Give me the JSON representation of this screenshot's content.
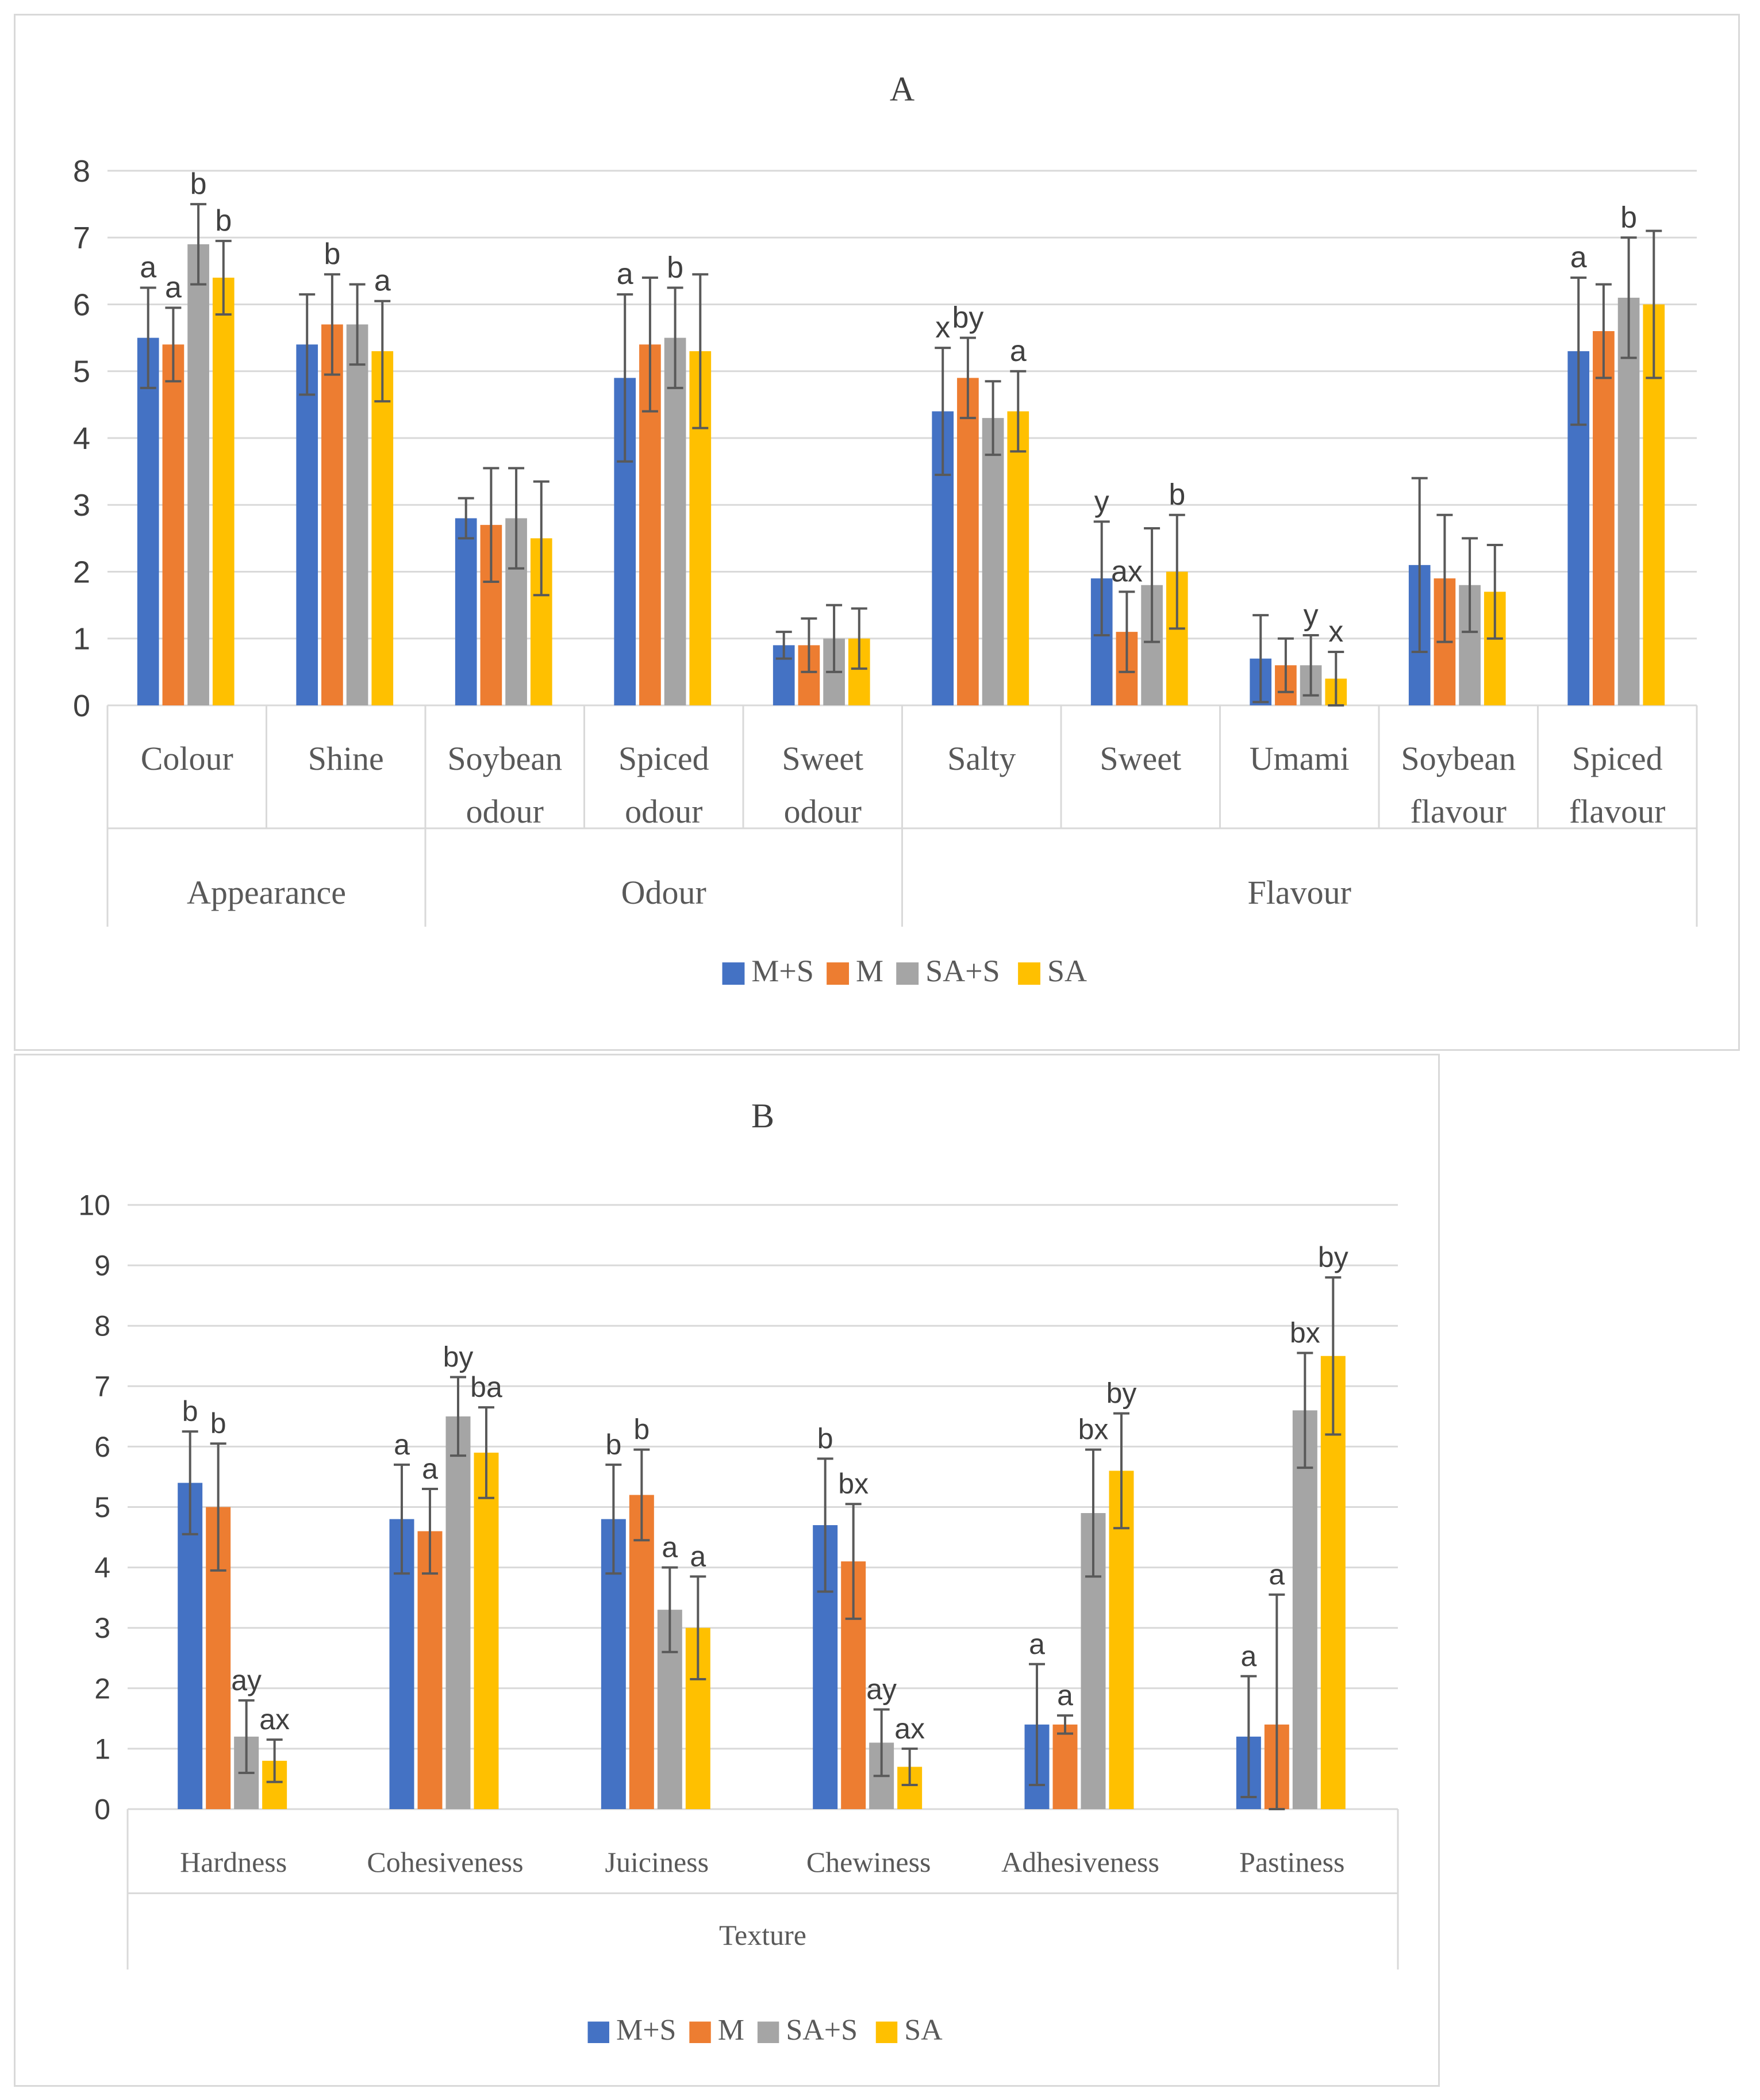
{
  "series_colors": {
    "M+S": "#4472c4",
    "M": "#ed7d31",
    "SA+S": "#a5a5a5",
    "SA": "#ffc000"
  },
  "chart_data": [
    {
      "type": "bar",
      "title": "A",
      "ylim": [
        0,
        8
      ],
      "yticks": [
        0,
        1,
        2,
        3,
        4,
        5,
        6,
        7,
        8
      ],
      "grid": true,
      "legend_position": "bottom",
      "categories": [
        [
          "Colour"
        ],
        [
          "Shine"
        ],
        [
          "Soybean",
          "odour"
        ],
        [
          "Spiced",
          "odour"
        ],
        [
          "Sweet",
          "odour"
        ],
        [
          "Salty"
        ],
        [
          "Sweet"
        ],
        [
          "Umami"
        ],
        [
          "Soybean",
          "flavour"
        ],
        [
          "Spiced",
          "flavour"
        ]
      ],
      "groups": [
        {
          "label": "Appearance",
          "start": 0,
          "end": 1
        },
        {
          "label": "Odour",
          "start": 2,
          "end": 4
        },
        {
          "label": "Flavour",
          "start": 5,
          "end": 9
        }
      ],
      "series": [
        {
          "name": "M+S",
          "values": [
            5.5,
            5.4,
            2.8,
            4.9,
            0.9,
            4.4,
            1.9,
            0.7,
            2.1,
            5.3
          ],
          "errors": [
            0.75,
            0.75,
            0.3,
            1.25,
            0.2,
            0.95,
            0.85,
            0.65,
            1.3,
            1.1
          ]
        },
        {
          "name": "M",
          "values": [
            5.4,
            5.7,
            2.7,
            5.4,
            0.9,
            4.9,
            1.1,
            0.6,
            1.9,
            5.6
          ],
          "errors": [
            0.55,
            0.75,
            0.85,
            1.0,
            0.4,
            0.6,
            0.6,
            0.4,
            0.95,
            0.7
          ]
        },
        {
          "name": "SA+S",
          "values": [
            6.9,
            5.7,
            2.8,
            5.5,
            1.0,
            4.3,
            1.8,
            0.6,
            1.8,
            6.1
          ],
          "errors": [
            0.6,
            0.6,
            0.75,
            0.75,
            0.5,
            0.55,
            0.85,
            0.45,
            0.7,
            0.9
          ]
        },
        {
          "name": "SA",
          "values": [
            6.4,
            5.3,
            2.5,
            5.3,
            1.0,
            4.4,
            2.0,
            0.4,
            1.7,
            6.0
          ],
          "errors": [
            0.55,
            0.75,
            0.85,
            1.15,
            0.45,
            0.6,
            0.85,
            0.4,
            0.7,
            1.1
          ]
        }
      ],
      "annotations": [
        {
          "text": "a",
          "category": 0,
          "series": 0
        },
        {
          "text": "a",
          "category": 0,
          "series": 1
        },
        {
          "text": "b",
          "category": 0,
          "series": 2
        },
        {
          "text": "b",
          "category": 0,
          "series": 3
        },
        {
          "text": "b",
          "category": 1,
          "series": 1
        },
        {
          "text": "a",
          "category": 1,
          "series": 3
        },
        {
          "text": "a",
          "category": 3,
          "series": 0
        },
        {
          "text": "b",
          "category": 3,
          "series": 2
        },
        {
          "text": "x",
          "category": 5,
          "series": 0
        },
        {
          "text": "by",
          "category": 5,
          "series": 1
        },
        {
          "text": "a",
          "category": 5,
          "series": 3
        },
        {
          "text": "y",
          "category": 6,
          "series": 0
        },
        {
          "text": "ax",
          "category": 6,
          "series": 1
        },
        {
          "text": "b",
          "category": 6,
          "series": 3
        },
        {
          "text": "y",
          "category": 7,
          "series": 2
        },
        {
          "text": "x",
          "category": 7,
          "series": 3
        },
        {
          "text": "a",
          "category": 9,
          "series": 0
        },
        {
          "text": "b",
          "category": 9,
          "series": 2
        }
      ],
      "legend": [
        "M+S",
        "M",
        "SA+S",
        "SA"
      ]
    },
    {
      "type": "bar",
      "title": "B",
      "ylim": [
        0,
        10
      ],
      "yticks": [
        0,
        1,
        2,
        3,
        4,
        5,
        6,
        7,
        8,
        9,
        10
      ],
      "grid": true,
      "legend_position": "bottom",
      "categories": [
        [
          "Hardness"
        ],
        [
          "Cohesiveness"
        ],
        [
          "Juiciness"
        ],
        [
          "Chewiness"
        ],
        [
          "Adhesiveness"
        ],
        [
          "Pastiness"
        ]
      ],
      "groups": [
        {
          "label": "Texture",
          "start": 0,
          "end": 5
        }
      ],
      "series": [
        {
          "name": "M+S",
          "values": [
            5.4,
            4.8,
            4.8,
            4.7,
            1.4,
            1.2
          ],
          "errors": [
            0.85,
            0.9,
            0.9,
            1.1,
            1.0,
            1.0
          ]
        },
        {
          "name": "M",
          "values": [
            5.0,
            4.6,
            5.2,
            4.1,
            1.4,
            1.4
          ],
          "errors": [
            1.05,
            0.7,
            0.75,
            0.95,
            0.15,
            2.15
          ]
        },
        {
          "name": "SA+S",
          "values": [
            1.2,
            6.5,
            3.3,
            1.1,
            4.9,
            6.6
          ],
          "errors": [
            0.6,
            0.65,
            0.7,
            0.55,
            1.05,
            0.95
          ]
        },
        {
          "name": "SA",
          "values": [
            0.8,
            5.9,
            3.0,
            0.7,
            5.6,
            7.5
          ],
          "errors": [
            0.35,
            0.75,
            0.85,
            0.3,
            0.95,
            1.3
          ]
        }
      ],
      "annotations": [
        {
          "text": "b",
          "category": 0,
          "series": 0
        },
        {
          "text": "b",
          "category": 0,
          "series": 1
        },
        {
          "text": "ay",
          "category": 0,
          "series": 2
        },
        {
          "text": "ax",
          "category": 0,
          "series": 3
        },
        {
          "text": "a",
          "category": 1,
          "series": 0
        },
        {
          "text": "a",
          "category": 1,
          "series": 1
        },
        {
          "text": "by",
          "category": 1,
          "series": 2
        },
        {
          "text": "ba",
          "category": 1,
          "series": 3
        },
        {
          "text": "b",
          "category": 2,
          "series": 0
        },
        {
          "text": "b",
          "category": 2,
          "series": 1
        },
        {
          "text": "a",
          "category": 2,
          "series": 2
        },
        {
          "text": "a",
          "category": 2,
          "series": 3
        },
        {
          "text": "b",
          "category": 3,
          "series": 0
        },
        {
          "text": "bx",
          "category": 3,
          "series": 1
        },
        {
          "text": "ay",
          "category": 3,
          "series": 2
        },
        {
          "text": "ax",
          "category": 3,
          "series": 3
        },
        {
          "text": "a",
          "category": 4,
          "series": 0
        },
        {
          "text": "a",
          "category": 4,
          "series": 1
        },
        {
          "text": "bx",
          "category": 4,
          "series": 2
        },
        {
          "text": "by",
          "category": 4,
          "series": 3
        },
        {
          "text": "a",
          "category": 5,
          "series": 0
        },
        {
          "text": "a",
          "category": 5,
          "series": 1
        },
        {
          "text": "bx",
          "category": 5,
          "series": 2
        },
        {
          "text": "by",
          "category": 5,
          "series": 3
        }
      ],
      "legend": [
        "M+S",
        "M",
        "SA+S",
        "SA"
      ]
    }
  ]
}
